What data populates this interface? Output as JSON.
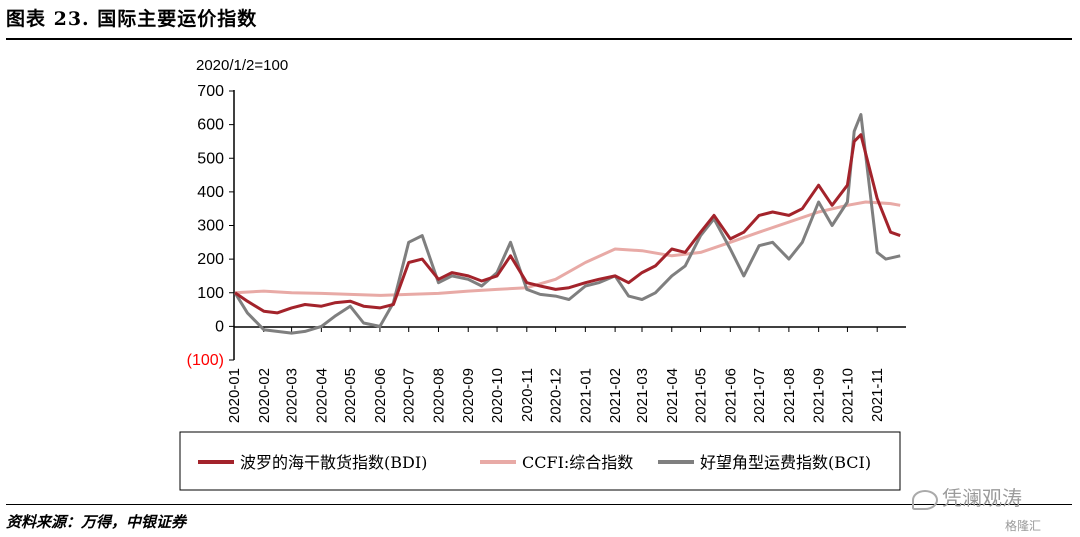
{
  "figure_title": "图表 23. 国际主要运价指数",
  "source_note": "资料来源：万得，中银证券",
  "watermark": {
    "main": "凭澜观涛",
    "small": "格隆汇",
    "icon": "wechat-icon"
  },
  "colors": {
    "bdi": "#a3232b",
    "ccfi": "#e8aaa6",
    "bci": "#7f7f7f",
    "negative_label": "#ff0000"
  },
  "chart_data": {
    "type": "line",
    "unit_label": "2020/1/2=100",
    "ylim": [
      -100,
      700
    ],
    "yticks": [
      700,
      600,
      500,
      400,
      300,
      200,
      100,
      0,
      -100
    ],
    "ytick_labels": [
      "700",
      "600",
      "500",
      "400",
      "300",
      "200",
      "100",
      "0",
      "(100)"
    ],
    "xlim": [
      "2020-01",
      "2021-12"
    ],
    "xtick_labels": [
      "2020-01",
      "2020-02",
      "2020-03",
      "2020-04",
      "2020-05",
      "2020-06",
      "2020-07",
      "2020-08",
      "2020-09",
      "2020-10",
      "2020-11",
      "2020-12",
      "2021-01",
      "2021-02",
      "2021-03",
      "2021-04",
      "2021-05",
      "2021-06",
      "2021-07",
      "2021-08",
      "2021-09",
      "2021-10",
      "2021-11"
    ],
    "grid": false,
    "legend_position": "bottom",
    "series": [
      {
        "name": "波罗的海干散货指数(BDI)",
        "x": [
          "2020-01-02",
          "2020-01-15",
          "2020-02-01",
          "2020-02-15",
          "2020-03-01",
          "2020-03-15",
          "2020-04-01",
          "2020-04-15",
          "2020-05-01",
          "2020-05-15",
          "2020-06-01",
          "2020-06-15",
          "2020-07-01",
          "2020-07-15",
          "2020-08-01",
          "2020-08-15",
          "2020-09-01",
          "2020-09-15",
          "2020-10-01",
          "2020-10-15",
          "2020-11-01",
          "2020-11-15",
          "2020-12-01",
          "2020-12-15",
          "2021-01-01",
          "2021-01-15",
          "2021-02-01",
          "2021-02-15",
          "2021-03-01",
          "2021-03-15",
          "2021-04-01",
          "2021-04-15",
          "2021-05-01",
          "2021-05-15",
          "2021-06-01",
          "2021-06-15",
          "2021-07-01",
          "2021-07-15",
          "2021-08-01",
          "2021-08-15",
          "2021-09-01",
          "2021-09-15",
          "2021-10-01",
          "2021-10-08",
          "2021-10-15",
          "2021-11-01",
          "2021-11-15",
          "2021-11-25"
        ],
        "y": [
          100,
          75,
          45,
          40,
          55,
          65,
          60,
          70,
          75,
          60,
          55,
          65,
          190,
          200,
          140,
          160,
          150,
          135,
          150,
          210,
          130,
          120,
          110,
          115,
          130,
          140,
          150,
          130,
          160,
          180,
          230,
          220,
          280,
          330,
          260,
          280,
          330,
          340,
          330,
          350,
          420,
          360,
          420,
          550,
          570,
          380,
          280,
          270
        ]
      },
      {
        "name": "CCFI:综合指数",
        "x": [
          "2020-01-02",
          "2020-02-01",
          "2020-03-01",
          "2020-04-01",
          "2020-05-01",
          "2020-06-01",
          "2020-07-01",
          "2020-08-01",
          "2020-09-01",
          "2020-10-01",
          "2020-11-01",
          "2020-12-01",
          "2021-01-01",
          "2021-02-01",
          "2021-03-01",
          "2021-04-01",
          "2021-05-01",
          "2021-06-01",
          "2021-07-01",
          "2021-08-01",
          "2021-09-01",
          "2021-10-01",
          "2021-10-20",
          "2021-11-15",
          "2021-11-25"
        ],
        "y": [
          100,
          105,
          100,
          98,
          95,
          92,
          95,
          98,
          105,
          110,
          115,
          140,
          190,
          230,
          225,
          210,
          220,
          250,
          280,
          310,
          340,
          360,
          370,
          365,
          360
        ]
      },
      {
        "name": "好望角型运费指数(BCI)",
        "x": [
          "2020-01-02",
          "2020-01-15",
          "2020-02-01",
          "2020-02-15",
          "2020-03-01",
          "2020-03-15",
          "2020-04-01",
          "2020-04-15",
          "2020-05-01",
          "2020-05-15",
          "2020-06-01",
          "2020-06-15",
          "2020-07-01",
          "2020-07-15",
          "2020-08-01",
          "2020-08-15",
          "2020-09-01",
          "2020-09-15",
          "2020-10-01",
          "2020-10-15",
          "2020-11-01",
          "2020-11-15",
          "2020-12-01",
          "2020-12-15",
          "2021-01-01",
          "2021-01-15",
          "2021-02-01",
          "2021-02-15",
          "2021-03-01",
          "2021-03-15",
          "2021-04-01",
          "2021-04-15",
          "2021-05-01",
          "2021-05-15",
          "2021-06-01",
          "2021-06-15",
          "2021-07-01",
          "2021-07-15",
          "2021-08-01",
          "2021-08-15",
          "2021-09-01",
          "2021-09-15",
          "2021-10-01",
          "2021-10-08",
          "2021-10-15",
          "2021-11-01",
          "2021-11-10",
          "2021-11-25"
        ],
        "y": [
          100,
          40,
          -10,
          -15,
          -20,
          -15,
          0,
          30,
          60,
          10,
          0,
          70,
          250,
          270,
          130,
          150,
          140,
          120,
          160,
          250,
          110,
          95,
          90,
          80,
          120,
          130,
          150,
          90,
          80,
          100,
          150,
          180,
          270,
          320,
          230,
          150,
          240,
          250,
          200,
          250,
          370,
          300,
          370,
          580,
          630,
          220,
          200,
          210
        ]
      }
    ]
  }
}
